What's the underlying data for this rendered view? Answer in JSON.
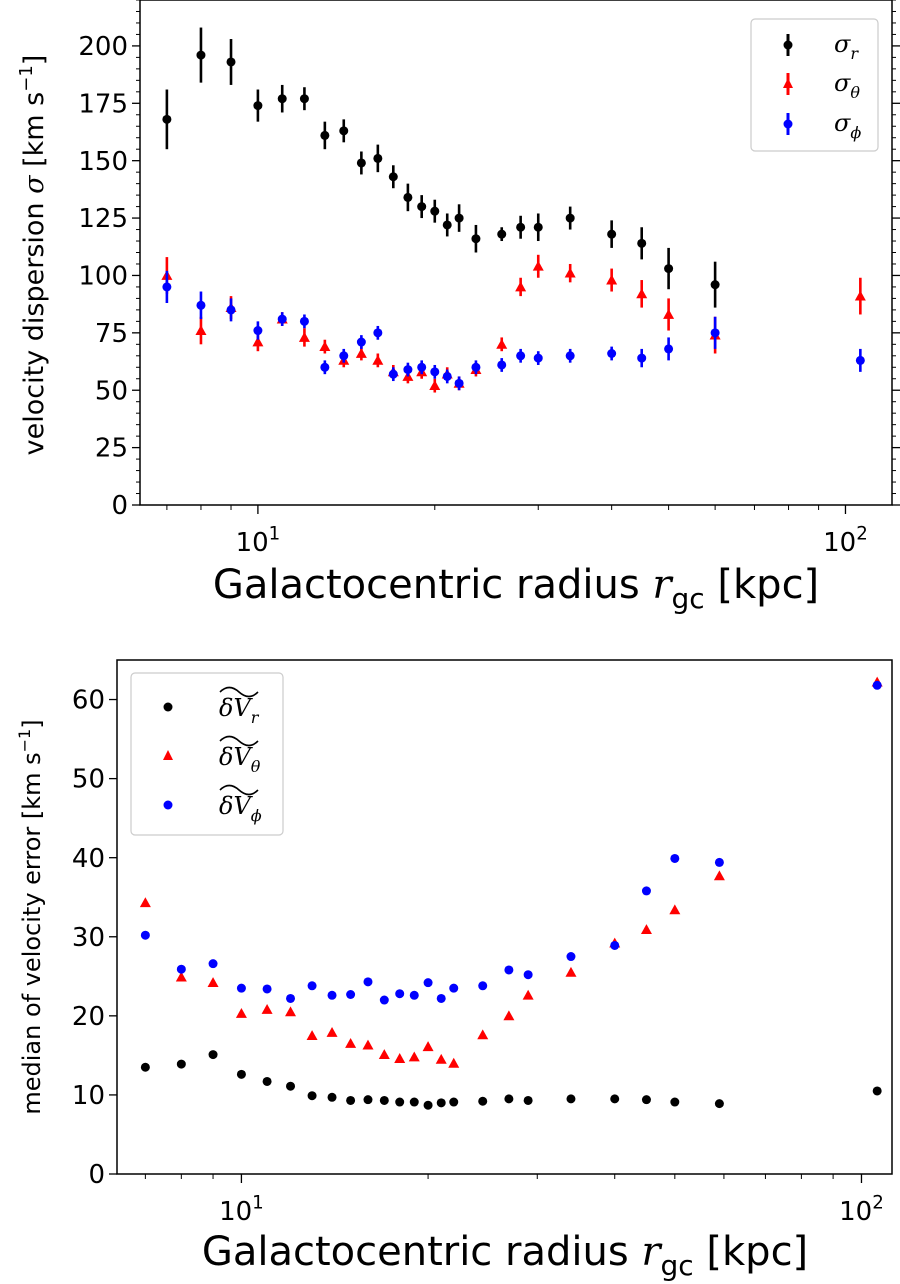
{
  "chart_data": [
    {
      "type": "scatter",
      "xscale": "log",
      "xlim": [
        6.3,
        120
      ],
      "ylim": [
        0,
        220
      ],
      "xticks": [
        {
          "value": 10,
          "base": "10",
          "exp": "1"
        },
        {
          "value": 100,
          "base": "10",
          "exp": "2"
        }
      ],
      "yticks": [
        0,
        25,
        50,
        75,
        100,
        125,
        150,
        175,
        200
      ],
      "xlabel": "Galactocentric radius r_gc [kpc]",
      "ylabel": "velocity dispersion σ [km s^-1]",
      "legend_position": "upper right",
      "series": [
        {
          "name": "σ_r",
          "legend_label": "σ",
          "legend_sub": "r",
          "color": "#000000",
          "marker": "circle",
          "x": [
            7,
            8,
            9,
            10,
            11,
            12,
            13,
            14,
            15,
            16,
            17,
            18,
            19,
            20,
            21,
            22,
            23.5,
            26,
            28,
            30,
            34,
            40,
            45,
            50,
            60,
            106
          ],
          "y": [
            168,
            196,
            193,
            174,
            177,
            177,
            161,
            163,
            149,
            151,
            143,
            134,
            130,
            128,
            122,
            125,
            116,
            118,
            121,
            121,
            125,
            118,
            114,
            103,
            96,
            null
          ],
          "err": [
            13,
            12,
            10,
            7,
            6,
            5,
            6,
            5,
            5,
            6,
            5,
            6,
            5,
            5,
            5,
            6,
            6,
            3,
            5,
            6,
            5,
            6,
            7,
            9,
            10,
            null
          ]
        },
        {
          "name": "σ_θ",
          "legend_label": "σ",
          "legend_sub": "θ",
          "color": "#ff0000",
          "marker": "triangle",
          "x": [
            7,
            8,
            9,
            10,
            11,
            12,
            13,
            14,
            15,
            16,
            17,
            18,
            19,
            20,
            21,
            22,
            23.5,
            26,
            28,
            30,
            34,
            40,
            45,
            50,
            60,
            106
          ],
          "y": [
            100,
            76,
            86,
            71,
            81,
            73,
            69,
            63,
            66,
            63,
            58,
            56,
            58,
            52,
            57,
            53,
            59,
            70,
            95,
            104,
            101,
            98,
            92,
            83,
            74,
            91
          ],
          "err": [
            8,
            6,
            5,
            4,
            3,
            4,
            3,
            3,
            3,
            3,
            3,
            3,
            3,
            3,
            3,
            3,
            3,
            3,
            4,
            5,
            4,
            5,
            6,
            7,
            8,
            8
          ]
        },
        {
          "name": "σ_ϕ",
          "legend_label": "σ",
          "legend_sub": "ϕ",
          "color": "#0000ff",
          "marker": "circle",
          "x": [
            7,
            8,
            9,
            10,
            11,
            12,
            13,
            14,
            15,
            16,
            17,
            18,
            19,
            20,
            21,
            22,
            23.5,
            26,
            28,
            30,
            34,
            40,
            45,
            50,
            60,
            106
          ],
          "y": [
            95,
            87,
            85,
            76,
            81,
            80,
            60,
            65,
            71,
            75,
            57,
            59,
            60,
            58,
            56,
            53,
            60,
            61,
            65,
            64,
            65,
            66,
            64,
            68,
            75,
            63
          ],
          "err": [
            7,
            6,
            5,
            4,
            3,
            3,
            3,
            3,
            3,
            3,
            3,
            3,
            3,
            3,
            3,
            3,
            3,
            3,
            3,
            3,
            3,
            3,
            4,
            5,
            7,
            5
          ]
        }
      ]
    },
    {
      "type": "scatter",
      "xscale": "log",
      "xlim": [
        6.3,
        112
      ],
      "ylim": [
        0,
        65
      ],
      "xticks": [
        {
          "value": 10,
          "base": "10",
          "exp": "1"
        },
        {
          "value": 100,
          "base": "10",
          "exp": "2"
        }
      ],
      "yticks": [
        0,
        10,
        20,
        30,
        40,
        50,
        60
      ],
      "xlabel": "Galactocentric radius r_gc [kpc]",
      "ylabel": "median of velocity error [km s^-1]",
      "legend_position": "upper left",
      "series": [
        {
          "name": "δV_r",
          "legend_label": "δV",
          "legend_sub": "r",
          "color": "#000000",
          "marker": "circle",
          "x": [
            7,
            8,
            9,
            10,
            11,
            12,
            13,
            14,
            15,
            16,
            17,
            18,
            19,
            20,
            21,
            22,
            24.5,
            27,
            29,
            34,
            40,
            45,
            50,
            59,
            106
          ],
          "y": [
            13.5,
            13.9,
            15.1,
            12.6,
            11.7,
            11.1,
            9.9,
            9.7,
            9.3,
            9.4,
            9.3,
            9.1,
            9.1,
            8.7,
            9.0,
            9.1,
            9.2,
            9.5,
            9.3,
            9.5,
            9.5,
            9.4,
            9.1,
            8.9,
            10.5
          ]
        },
        {
          "name": "δV_θ",
          "legend_label": "δV",
          "legend_sub": "θ",
          "color": "#ff0000",
          "marker": "triangle",
          "x": [
            7,
            8,
            9,
            10,
            11,
            12,
            13,
            14,
            15,
            16,
            17,
            18,
            19,
            20,
            21,
            22,
            24.5,
            27,
            29,
            34,
            40,
            45,
            50,
            59,
            106
          ],
          "y": [
            34.3,
            24.9,
            24.2,
            20.3,
            20.8,
            20.5,
            17.5,
            17.9,
            16.5,
            16.3,
            15.1,
            14.6,
            14.8,
            16.1,
            14.5,
            14.0,
            17.6,
            20.0,
            22.6,
            25.5,
            29.2,
            30.9,
            33.4,
            37.7,
            62.2
          ]
        },
        {
          "name": "δV_ϕ",
          "legend_label": "δV",
          "legend_sub": "ϕ",
          "color": "#0000ff",
          "marker": "circle",
          "x": [
            7,
            8,
            9,
            10,
            11,
            12,
            13,
            14,
            15,
            16,
            17,
            18,
            19,
            20,
            21,
            22,
            24.5,
            27,
            29,
            34,
            40,
            45,
            50,
            59,
            106
          ],
          "y": [
            30.2,
            25.9,
            26.6,
            23.5,
            23.4,
            22.2,
            23.8,
            22.6,
            22.7,
            24.3,
            22.0,
            22.8,
            22.6,
            24.2,
            22.2,
            23.5,
            23.8,
            25.8,
            25.2,
            27.5,
            28.9,
            35.8,
            39.9,
            39.4,
            61.8
          ]
        }
      ]
    }
  ],
  "labels": {
    "top": {
      "xlabel_main": "Galactocentric radius ",
      "xlabel_var": "r",
      "xlabel_sub": "gc",
      "xlabel_unit": " [kpc]",
      "ylabel_main": "velocity dispersion ",
      "ylabel_var": "σ",
      "ylabel_unit": " [km s",
      "ylabel_exp": "−1",
      "ylabel_close": "]"
    },
    "bottom": {
      "xlabel_main": "Galactocentric radius ",
      "xlabel_var": "r",
      "xlabel_sub": "gc",
      "xlabel_unit": " [kpc]",
      "ylabel_main": "median of velocity error [km s",
      "ylabel_exp": "−1",
      "ylabel_close": "]"
    }
  }
}
